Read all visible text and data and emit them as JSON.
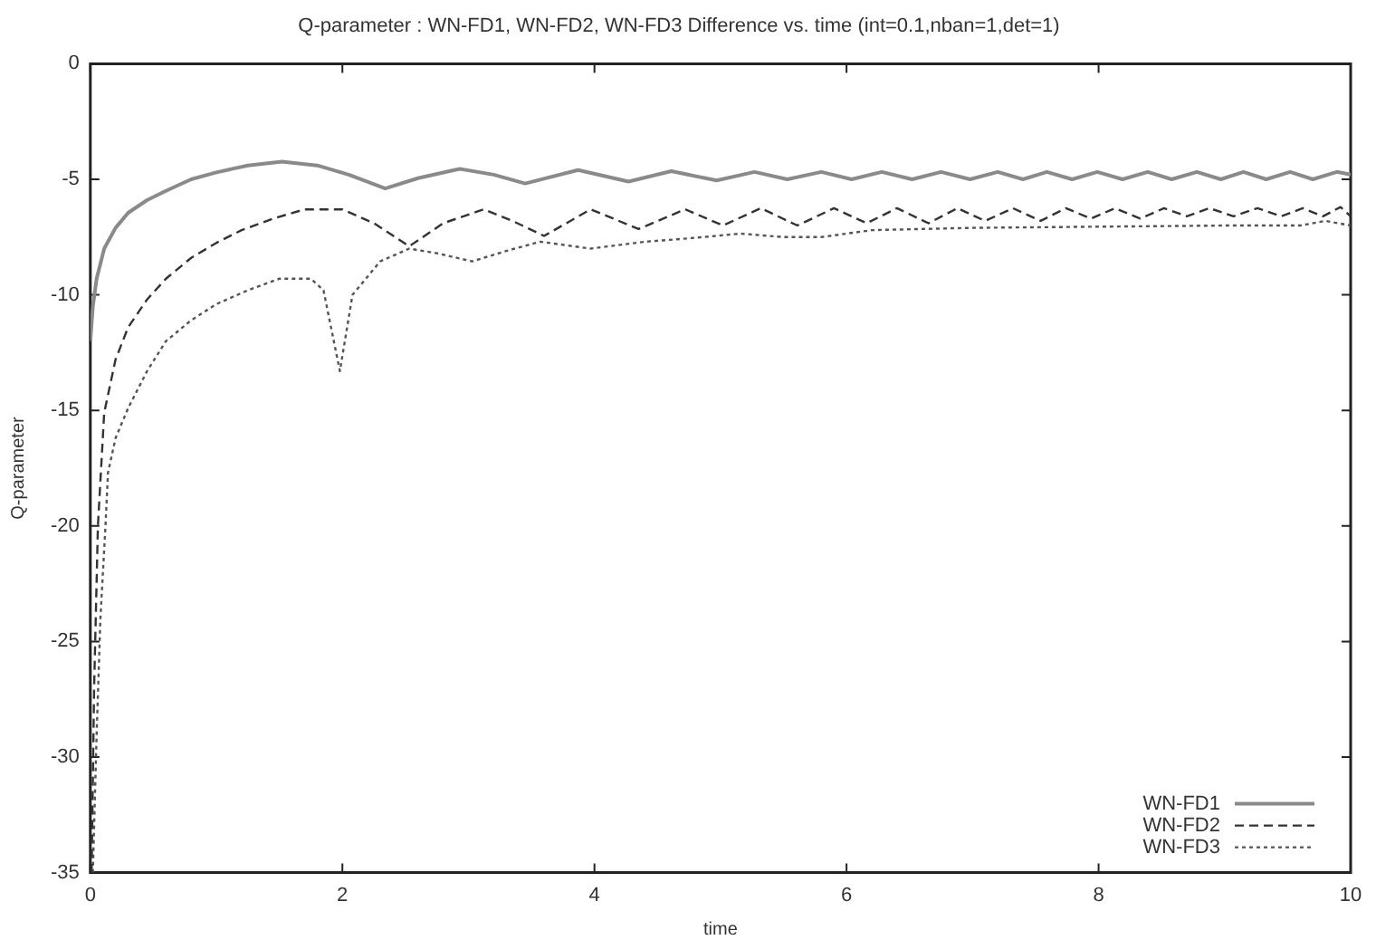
{
  "chart_data": {
    "type": "line",
    "title": "Q-parameter : WN-FD1, WN-FD2, WN-FD3 Difference vs. time (int=0.1,nban=1,det=1)",
    "xlabel": "time",
    "ylabel": "Q-parameter",
    "xlim": [
      0,
      10
    ],
    "xticks": [
      0,
      2,
      4,
      6,
      8,
      10
    ],
    "ylim": [
      -35,
      0
    ],
    "yticks": [
      -35,
      -30,
      -25,
      -20,
      -15,
      -10,
      -5,
      0
    ],
    "grid": false,
    "legend": "bottom right",
    "marker": "none",
    "series": [
      {
        "name": "WN-FD1",
        "color": "#8a8a8a",
        "line_style": "solid",
        "x": [
          0,
          0.02,
          0.05,
          0.11,
          0.2,
          0.3,
          0.45,
          0.6,
          0.8,
          1.0,
          1.25,
          1.52,
          1.8,
          2.05,
          2.34,
          2.6,
          2.93,
          3.2,
          3.45,
          3.87,
          4.27,
          4.61,
          4.97,
          5.27,
          5.53,
          5.8,
          6.04,
          6.28,
          6.52,
          6.75,
          6.98,
          7.2,
          7.4,
          7.59,
          7.79,
          7.99,
          8.19,
          8.39,
          8.58,
          8.78,
          8.97,
          9.15,
          9.33,
          9.52,
          9.7,
          9.89,
          10
        ],
        "values": [
          -12,
          -10.5,
          -9.3,
          -8.0,
          -7.1,
          -6.45,
          -5.9,
          -5.5,
          -5.0,
          -4.7,
          -4.4,
          -4.24,
          -4.4,
          -4.8,
          -5.4,
          -4.95,
          -4.55,
          -4.8,
          -5.18,
          -4.6,
          -5.1,
          -4.65,
          -5.05,
          -4.68,
          -5.0,
          -4.68,
          -5.0,
          -4.68,
          -5.0,
          -4.68,
          -5.0,
          -4.68,
          -5.0,
          -4.68,
          -5.0,
          -4.68,
          -5.0,
          -4.68,
          -5.0,
          -4.68,
          -5.0,
          -4.68,
          -5.0,
          -4.68,
          -5.0,
          -4.68,
          -4.8
        ]
      },
      {
        "name": "WN-FD2",
        "color": "#333333",
        "line_style": "dashed",
        "x": [
          0.01,
          0.03,
          0.06,
          0.11,
          0.2,
          0.3,
          0.45,
          0.6,
          0.8,
          1.0,
          1.2,
          1.45,
          1.7,
          2.0,
          2.25,
          2.53,
          2.8,
          3.12,
          3.35,
          3.6,
          3.97,
          4.35,
          4.72,
          5.02,
          5.32,
          5.61,
          5.9,
          6.16,
          6.4,
          6.65,
          6.88,
          7.1,
          7.32,
          7.54,
          7.74,
          7.94,
          8.13,
          8.33,
          8.52,
          8.7,
          8.88,
          9.07,
          9.26,
          9.45,
          9.62,
          9.78,
          9.92,
          10
        ],
        "values": [
          -35,
          -27,
          -20,
          -15.1,
          -12.8,
          -11.4,
          -10.2,
          -9.3,
          -8.4,
          -7.75,
          -7.2,
          -6.7,
          -6.3,
          -6.3,
          -6.9,
          -7.9,
          -6.9,
          -6.3,
          -6.8,
          -7.45,
          -6.3,
          -7.15,
          -6.3,
          -7.0,
          -6.25,
          -7.0,
          -6.25,
          -6.9,
          -6.25,
          -6.9,
          -6.25,
          -6.8,
          -6.25,
          -6.8,
          -6.25,
          -6.7,
          -6.25,
          -6.7,
          -6.25,
          -6.6,
          -6.25,
          -6.6,
          -6.25,
          -6.6,
          -6.25,
          -6.6,
          -6.2,
          -6.6
        ]
      },
      {
        "name": "WN-FD3",
        "color": "#555555",
        "line_style": "dotted",
        "x": [
          0.02,
          0.05,
          0.08,
          0.12,
          0.14,
          0.2,
          0.3,
          0.45,
          0.6,
          0.8,
          1.0,
          1.25,
          1.5,
          1.75,
          1.85,
          1.98,
          2.08,
          2.3,
          2.53,
          2.75,
          3.03,
          3.3,
          3.57,
          3.97,
          4.4,
          4.76,
          5.16,
          5.5,
          5.8,
          6.2,
          7.0,
          8.0,
          9.0,
          9.6,
          9.8,
          10
        ],
        "values": [
          -35,
          -29,
          -24,
          -20,
          -17.7,
          -16.2,
          -14.9,
          -13.3,
          -12.0,
          -11.1,
          -10.4,
          -9.8,
          -9.3,
          -9.3,
          -9.8,
          -13.3,
          -10.0,
          -8.55,
          -8.0,
          -8.2,
          -8.55,
          -8.1,
          -7.7,
          -8.0,
          -7.7,
          -7.55,
          -7.35,
          -7.5,
          -7.5,
          -7.2,
          -7.1,
          -7.05,
          -7.0,
          -7.0,
          -6.8,
          -7.0
        ]
      }
    ]
  }
}
